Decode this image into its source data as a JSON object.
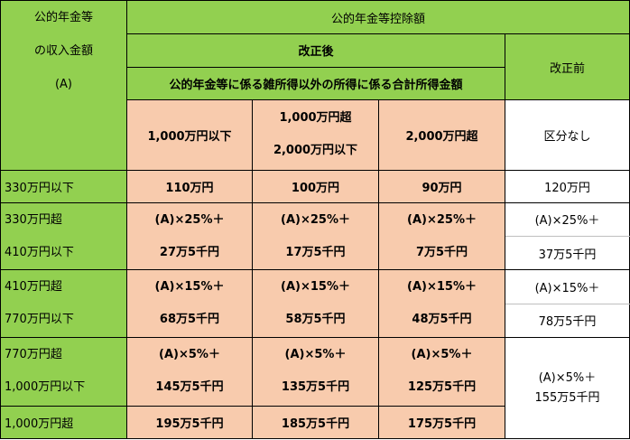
{
  "header": {
    "income_col": [
      "公的年金等",
      "の収入金額",
      "(A)"
    ],
    "deduction_title": "公的年金等控除額",
    "after_reform": "改正後",
    "before_reform": "改正前",
    "other_income_title": "公的年金等に係る雑所得以外の所得に係る合計所得金額",
    "bracket_1": "1,000万円以下",
    "bracket_2_line1": "1,000万円超",
    "bracket_2_line2": "2,000万円以下",
    "bracket_3": "2,000万円超",
    "no_division": "区分なし"
  },
  "rows": [
    {
      "income": [
        "330万円以下"
      ],
      "after": [
        [
          "110万円"
        ],
        [
          "100万円"
        ],
        [
          "90万円"
        ]
      ],
      "before": [
        "120万円"
      ]
    },
    {
      "income": [
        "330万円超",
        "410万円以下"
      ],
      "after": [
        [
          "(A)×25%＋",
          "27万5千円"
        ],
        [
          "(A)×25%＋",
          "17万5千円"
        ],
        [
          "(A)×25%＋",
          "7万5千円"
        ]
      ],
      "before": [
        "(A)×25%＋",
        "37万5千円"
      ]
    },
    {
      "income": [
        "410万円超",
        "770万円以下"
      ],
      "after": [
        [
          "(A)×15%＋",
          "68万5千円"
        ],
        [
          "(A)×15%＋",
          "58万5千円"
        ],
        [
          "(A)×15%＋",
          "48万5千円"
        ]
      ],
      "before": [
        "(A)×15%＋",
        "78万5千円"
      ]
    },
    {
      "income": [
        "770万円超",
        "1,000万円以下"
      ],
      "after": [
        [
          "(A)×5%＋",
          "145万5千円"
        ],
        [
          "(A)×5%＋",
          "135万5千円"
        ],
        [
          "(A)×5%＋",
          "125万5千円"
        ]
      ],
      "before": [
        "(A)×5%＋",
        "155万5千円"
      ]
    },
    {
      "income": [
        "1,000万円超"
      ],
      "after": [
        [
          "195万5千円"
        ],
        [
          "185万5千円"
        ],
        [
          "175万5千円"
        ]
      ]
    }
  ]
}
